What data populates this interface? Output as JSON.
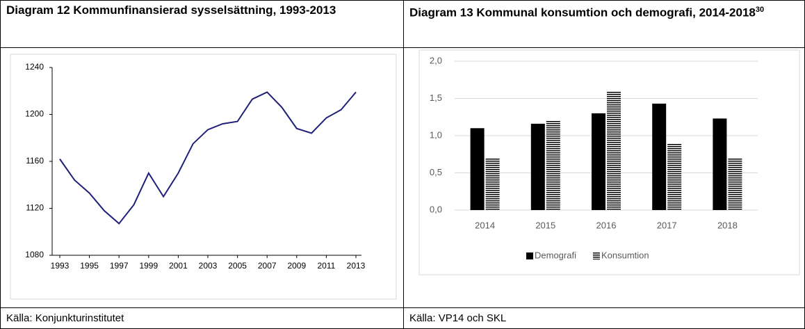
{
  "chart_data": [
    {
      "type": "line",
      "title": "Diagram 12 Kommunfinansierad sysselsättning, 1993-2013",
      "x": [
        1993,
        1994,
        1995,
        1996,
        1997,
        1998,
        1999,
        2000,
        2001,
        2002,
        2003,
        2004,
        2005,
        2006,
        2007,
        2008,
        2009,
        2010,
        2011,
        2012,
        2013
      ],
      "values": [
        1162,
        1144,
        1133,
        1118,
        1107,
        1123,
        1150,
        1130,
        1150,
        1175,
        1187,
        1192,
        1194,
        1213,
        1219,
        1206,
        1188,
        1184,
        1197,
        1204,
        1219
      ],
      "color": "#1f1f7a",
      "xlim": [
        1993,
        2013
      ],
      "xticks": [
        1993,
        1995,
        1997,
        1999,
        2001,
        2003,
        2005,
        2007,
        2009,
        2011,
        2013
      ],
      "ylim": [
        1080,
        1240
      ],
      "yticks": [
        1080,
        1120,
        1160,
        1200,
        1240
      ],
      "source": "Källa: Konjunkturinstitutet"
    },
    {
      "type": "bar",
      "title": "Diagram 13 Kommunal konsumtion och demografi, 2014-2018",
      "title_note": "30",
      "categories": [
        "2014",
        "2015",
        "2016",
        "2017",
        "2018"
      ],
      "series": [
        {
          "name": "Demografi",
          "color": "#000000",
          "values": [
            1.1,
            1.16,
            1.3,
            1.43,
            1.23
          ]
        },
        {
          "name": "Konsumtion",
          "color": "#000000",
          "hatch": "horizontal",
          "values": [
            0.7,
            1.2,
            1.6,
            0.9,
            0.7
          ]
        }
      ],
      "ylim": [
        0,
        2
      ],
      "yticks": [
        {
          "value": 0,
          "label": "0,0"
        },
        {
          "value": 0.5,
          "label": "0,5"
        },
        {
          "value": 1,
          "label": "1,0"
        },
        {
          "value": 1.5,
          "label": "1,5"
        },
        {
          "value": 2,
          "label": "2,0"
        }
      ],
      "grid": true,
      "legend": "bottom",
      "source": "Källa: VP14 och SKL"
    }
  ]
}
